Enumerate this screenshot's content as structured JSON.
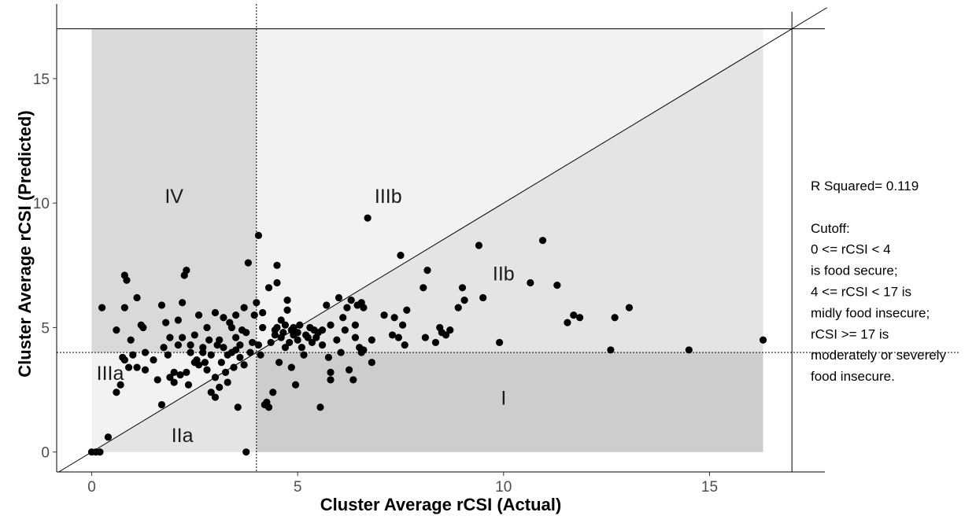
{
  "chart_data": {
    "type": "scatter",
    "title": "",
    "xlabel": "Cluster Average rCSI (Actual)",
    "ylabel": "Cluster Average rCSI (Predicted)",
    "xlim": [
      -0.85,
      17.8
    ],
    "ylim": [
      -0.8,
      18
    ],
    "x_ticks": [
      0,
      5,
      10,
      15
    ],
    "y_ticks": [
      0,
      5,
      10,
      15
    ],
    "grid": false,
    "cutoffs": {
      "food_secure": 4,
      "severe": 17
    },
    "reference_line": "y = x",
    "regions": [
      {
        "label": "IV",
        "x": 2,
        "y": 10
      },
      {
        "label": "IIIb",
        "x": 7.2,
        "y": 10
      },
      {
        "label": "IIb",
        "x": 10,
        "y": 6.9
      },
      {
        "label": "IIIa",
        "x": 0.45,
        "y": 2.9
      },
      {
        "label": "IIa",
        "x": 2.2,
        "y": 0.4
      },
      {
        "label": "I",
        "x": 10,
        "y": 1.9
      }
    ],
    "annotation_lines": [
      "R Squared=  0.119",
      "",
      "Cutoff:",
      "0 <= rCSI < 4",
      "is food secure;",
      "4 <= rCSI < 17 is",
      "midly food insecure;",
      "rCSI >= 17 is",
      "moderately or severely",
      "food insecure."
    ],
    "colors": {
      "region_IV": "#d9d9d9",
      "region_IIIb": "#f2f2f2",
      "region_IIb": "#e4e4e4",
      "region_IIIa": "#f2f2f2",
      "region_IIa": "#e4e4e4",
      "region_I": "#cdcdcd",
      "point": "#000000"
    },
    "points": [
      [
        0,
        0
      ],
      [
        0.1,
        0
      ],
      [
        0.2,
        0
      ],
      [
        0.25,
        5.8
      ],
      [
        0.4,
        0.6
      ],
      [
        0.6,
        2.4
      ],
      [
        0.6,
        4.9
      ],
      [
        0.7,
        2.7
      ],
      [
        0.75,
        3.8
      ],
      [
        0.8,
        3.7
      ],
      [
        0.8,
        5.8
      ],
      [
        0.8,
        7.1
      ],
      [
        0.85,
        6.9
      ],
      [
        0.9,
        3.4
      ],
      [
        0.95,
        4.5
      ],
      [
        1.0,
        3.9
      ],
      [
        1.1,
        3.4
      ],
      [
        1.1,
        6.2
      ],
      [
        1.2,
        5.1
      ],
      [
        1.25,
        5.0
      ],
      [
        1.3,
        3.3
      ],
      [
        1.3,
        4.0
      ],
      [
        1.5,
        3.7
      ],
      [
        1.6,
        2.9
      ],
      [
        1.7,
        1.9
      ],
      [
        1.7,
        5.9
      ],
      [
        1.75,
        4.2
      ],
      [
        1.8,
        5.2
      ],
      [
        1.85,
        3.9
      ],
      [
        1.9,
        3.0
      ],
      [
        1.9,
        4.6
      ],
      [
        2.0,
        2.8
      ],
      [
        2.0,
        3.2
      ],
      [
        2.1,
        4.3
      ],
      [
        2.1,
        5.3
      ],
      [
        2.15,
        3.1
      ],
      [
        2.2,
        4.6
      ],
      [
        2.2,
        6.0
      ],
      [
        2.25,
        7.1
      ],
      [
        2.3,
        3.2
      ],
      [
        2.3,
        7.3
      ],
      [
        2.35,
        2.7
      ],
      [
        2.4,
        4.0
      ],
      [
        2.4,
        4.3
      ],
      [
        2.5,
        3.6
      ],
      [
        2.5,
        4.7
      ],
      [
        2.55,
        3.7
      ],
      [
        2.6,
        5.5
      ],
      [
        2.6,
        3.5
      ],
      [
        2.7,
        4.0
      ],
      [
        2.7,
        4.2
      ],
      [
        2.75,
        3.6
      ],
      [
        2.8,
        5.0
      ],
      [
        2.8,
        3.3
      ],
      [
        2.85,
        4.5
      ],
      [
        2.9,
        2.4
      ],
      [
        2.9,
        3.9
      ],
      [
        3.0,
        2.2
      ],
      [
        3.0,
        3.0
      ],
      [
        3.0,
        5.6
      ],
      [
        3.05,
        4.3
      ],
      [
        3.1,
        2.6
      ],
      [
        3.1,
        4.5
      ],
      [
        3.15,
        3.6
      ],
      [
        3.2,
        4.2
      ],
      [
        3.2,
        5.4
      ],
      [
        3.25,
        3.2
      ],
      [
        3.3,
        3.9
      ],
      [
        3.3,
        2.8
      ],
      [
        3.35,
        5.2
      ],
      [
        3.4,
        4.0
      ],
      [
        3.4,
        5.0
      ],
      [
        3.45,
        3.4
      ],
      [
        3.5,
        4.6
      ],
      [
        3.5,
        4.1
      ],
      [
        3.5,
        5.5
      ],
      [
        3.55,
        1.8
      ],
      [
        3.6,
        3.8
      ],
      [
        3.6,
        4.3
      ],
      [
        3.65,
        4.9
      ],
      [
        3.7,
        5.8
      ],
      [
        3.7,
        3.5
      ],
      [
        3.75,
        4.8
      ],
      [
        3.75,
        0
      ],
      [
        3.8,
        7.6
      ],
      [
        3.85,
        4.0
      ],
      [
        3.9,
        4.4
      ],
      [
        3.95,
        5.5
      ],
      [
        4.0,
        6.0
      ],
      [
        4.05,
        8.7
      ],
      [
        4.05,
        4.3
      ],
      [
        4.1,
        3.9
      ],
      [
        4.15,
        5.6
      ],
      [
        4.15,
        5.0
      ],
      [
        4.2,
        1.9
      ],
      [
        4.25,
        2.0
      ],
      [
        4.3,
        1.8
      ],
      [
        4.3,
        6.6
      ],
      [
        4.35,
        4.4
      ],
      [
        4.4,
        2.4
      ],
      [
        4.45,
        4.9
      ],
      [
        4.45,
        4.7
      ],
      [
        4.5,
        5.0
      ],
      [
        4.5,
        6.8
      ],
      [
        4.5,
        7.5
      ],
      [
        4.55,
        3.6
      ],
      [
        4.6,
        4.6
      ],
      [
        4.6,
        5.3
      ],
      [
        4.65,
        4.8
      ],
      [
        4.7,
        4.2
      ],
      [
        4.7,
        5.1
      ],
      [
        4.75,
        5.7
      ],
      [
        4.75,
        6.1
      ],
      [
        4.8,
        4.4
      ],
      [
        4.85,
        3.4
      ],
      [
        4.85,
        4.9
      ],
      [
        4.9,
        5.0
      ],
      [
        4.9,
        4.7
      ],
      [
        4.95,
        2.7
      ],
      [
        5.0,
        4.5
      ],
      [
        5.0,
        4.8
      ],
      [
        5.05,
        5.1
      ],
      [
        5.1,
        4.2
      ],
      [
        5.15,
        3.9
      ],
      [
        5.2,
        4.7
      ],
      [
        5.25,
        4.6
      ],
      [
        5.3,
        5.0
      ],
      [
        5.35,
        4.4
      ],
      [
        5.4,
        4.9
      ],
      [
        5.45,
        4.6
      ],
      [
        5.5,
        4.8
      ],
      [
        5.55,
        1.8
      ],
      [
        5.6,
        4.3
      ],
      [
        5.6,
        4.9
      ],
      [
        5.7,
        5.9
      ],
      [
        5.75,
        3.8
      ],
      [
        5.8,
        3.2
      ],
      [
        5.8,
        2.9
      ],
      [
        5.8,
        5.1
      ],
      [
        5.95,
        4.5
      ],
      [
        6.0,
        6.2
      ],
      [
        6.05,
        4.0
      ],
      [
        6.1,
        5.4
      ],
      [
        6.15,
        4.9
      ],
      [
        6.2,
        5.8
      ],
      [
        6.25,
        3.3
      ],
      [
        6.3,
        6.1
      ],
      [
        6.35,
        2.9
      ],
      [
        6.4,
        4.6
      ],
      [
        6.4,
        5.1
      ],
      [
        6.45,
        5.9
      ],
      [
        6.5,
        4.2
      ],
      [
        6.55,
        4.0
      ],
      [
        6.55,
        6.0
      ],
      [
        6.6,
        4.1
      ],
      [
        6.6,
        5.8
      ],
      [
        6.7,
        9.4
      ],
      [
        6.8,
        4.5
      ],
      [
        6.8,
        3.6
      ],
      [
        7.1,
        5.5
      ],
      [
        7.3,
        4.7
      ],
      [
        7.35,
        5.4
      ],
      [
        7.45,
        4.6
      ],
      [
        7.5,
        7.9
      ],
      [
        7.55,
        5.1
      ],
      [
        7.6,
        4.3
      ],
      [
        7.65,
        5.7
      ],
      [
        8.05,
        6.6
      ],
      [
        8.1,
        4.6
      ],
      [
        8.15,
        7.3
      ],
      [
        8.35,
        4.4
      ],
      [
        8.45,
        5.0
      ],
      [
        8.5,
        4.8
      ],
      [
        8.6,
        4.7
      ],
      [
        8.7,
        4.9
      ],
      [
        8.9,
        5.8
      ],
      [
        9.0,
        6.6
      ],
      [
        9.05,
        6.1
      ],
      [
        9.4,
        8.3
      ],
      [
        9.5,
        6.2
      ],
      [
        9.9,
        4.4
      ],
      [
        10.65,
        6.8
      ],
      [
        10.95,
        8.5
      ],
      [
        11.3,
        6.7
      ],
      [
        11.55,
        5.2
      ],
      [
        11.7,
        5.5
      ],
      [
        11.85,
        5.4
      ],
      [
        12.6,
        4.1
      ],
      [
        12.7,
        5.4
      ],
      [
        13.05,
        5.8
      ],
      [
        14.5,
        4.1
      ],
      [
        16.3,
        4.5
      ]
    ]
  }
}
